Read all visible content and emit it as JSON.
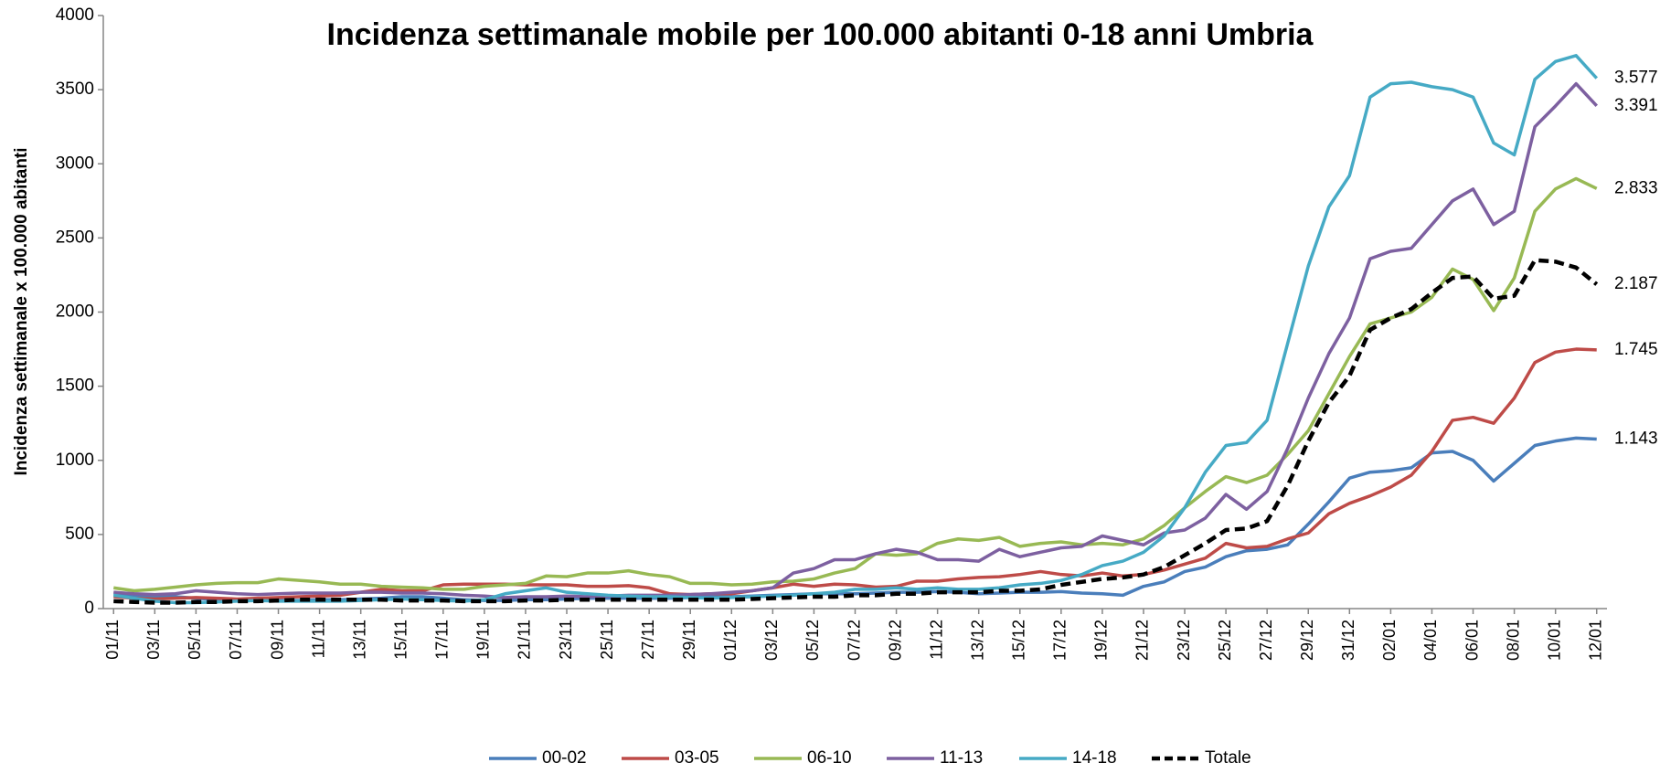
{
  "chart_data": {
    "type": "line",
    "title": "Incidenza settimanale mobile per 100.000 abitanti 0-18 anni  Umbria",
    "y_label": "Incidenza settimanale x 100.000 abitanti",
    "ylim": [
      0,
      4000
    ],
    "yticks": [
      0,
      500,
      1000,
      1500,
      2000,
      2500,
      3000,
      3500,
      4000
    ],
    "grid": false,
    "legend": "bottom",
    "categories": [
      "01/11",
      null,
      "03/11",
      null,
      "05/11",
      null,
      "07/11",
      null,
      "09/11",
      null,
      "11/11",
      null,
      "13/11",
      null,
      "15/11",
      null,
      "17/11",
      null,
      "19/11",
      null,
      "21/11",
      null,
      "23/11",
      null,
      "25/11",
      null,
      "27/11",
      null,
      "29/11",
      null,
      "01/12",
      null,
      "03/12",
      null,
      "05/12",
      null,
      "07/12",
      null,
      "09/12",
      null,
      "11/12",
      null,
      "13/12",
      null,
      "15/12",
      null,
      "17/12",
      null,
      "19/12",
      null,
      "21/12",
      null,
      "23/12",
      null,
      "25/12",
      null,
      "27/12",
      null,
      "29/12",
      null,
      "31/12",
      null,
      "02/01",
      null,
      "04/01",
      null,
      "06/01",
      null,
      "08/01",
      null,
      "10/01",
      null,
      "12/01"
    ],
    "series": [
      {
        "name": "00-02",
        "color": "#4a7ebb",
        "values": [
          100,
          90,
          80,
          80,
          70,
          60,
          60,
          60,
          55,
          55,
          60,
          60,
          65,
          70,
          80,
          80,
          70,
          60,
          55,
          55,
          60,
          60,
          65,
          70,
          70,
          70,
          70,
          70,
          75,
          80,
          80,
          85,
          90,
          95,
          100,
          100,
          100,
          105,
          110,
          110,
          115,
          110,
          100,
          105,
          110,
          110,
          115,
          105,
          100,
          90,
          150,
          180,
          250,
          280,
          350,
          390,
          400,
          430,
          570,
          720,
          880,
          920,
          930,
          950,
          1050,
          1060,
          1000,
          860,
          980,
          1100,
          1130,
          1150,
          1143
        ],
        "value_labels": {
          "72": "1.143"
        }
      },
      {
        "name": "03-05",
        "color": "#be4b48",
        "values": [
          80,
          70,
          65,
          70,
          75,
          70,
          65,
          70,
          75,
          80,
          85,
          90,
          110,
          130,
          120,
          120,
          160,
          165,
          165,
          165,
          160,
          160,
          160,
          150,
          150,
          155,
          140,
          100,
          95,
          100,
          100,
          120,
          140,
          165,
          150,
          165,
          160,
          145,
          150,
          185,
          185,
          200,
          210,
          215,
          230,
          250,
          230,
          220,
          240,
          220,
          230,
          260,
          300,
          340,
          440,
          410,
          420,
          470,
          510,
          640,
          710,
          760,
          820,
          900,
          1060,
          1270,
          1290,
          1250,
          1420,
          1660,
          1730,
          1750,
          1745
        ],
        "value_labels": {
          "72": "1.745"
        }
      },
      {
        "name": "06-10",
        "color": "#98b954",
        "values": [
          140,
          120,
          130,
          145,
          160,
          170,
          175,
          175,
          200,
          190,
          180,
          165,
          165,
          150,
          145,
          140,
          130,
          130,
          150,
          160,
          170,
          220,
          215,
          240,
          240,
          255,
          230,
          215,
          170,
          170,
          160,
          165,
          180,
          185,
          200,
          240,
          270,
          370,
          360,
          370,
          440,
          470,
          460,
          480,
          420,
          440,
          450,
          430,
          440,
          430,
          470,
          560,
          680,
          790,
          890,
          850,
          900,
          1040,
          1200,
          1450,
          1700,
          1920,
          1960,
          2000,
          2100,
          2290,
          2220,
          2010,
          2230,
          2680,
          2830,
          2900,
          2833
        ],
        "value_labels": {
          "72": "2.833"
        }
      },
      {
        "name": "11-13",
        "color": "#7d60a0",
        "values": [
          110,
          100,
          95,
          100,
          120,
          110,
          100,
          95,
          100,
          105,
          105,
          105,
          110,
          110,
          105,
          105,
          100,
          90,
          85,
          75,
          80,
          80,
          85,
          80,
          85,
          90,
          90,
          90,
          95,
          100,
          110,
          120,
          140,
          240,
          270,
          330,
          330,
          370,
          400,
          380,
          330,
          330,
          320,
          400,
          350,
          380,
          410,
          420,
          490,
          460,
          430,
          510,
          530,
          610,
          770,
          670,
          790,
          1080,
          1420,
          1720,
          1960,
          2360,
          2410,
          2430,
          2590,
          2750,
          2830,
          2590,
          2680,
          3250,
          3390,
          3540,
          3391
        ],
        "value_labels": {
          "72": "3.391"
        }
      },
      {
        "name": "14-18",
        "color": "#46aac5",
        "values": [
          90,
          70,
          50,
          40,
          40,
          45,
          50,
          55,
          50,
          50,
          50,
          50,
          55,
          60,
          65,
          60,
          55,
          50,
          60,
          100,
          120,
          140,
          110,
          100,
          90,
          85,
          80,
          80,
          75,
          70,
          75,
          80,
          85,
          90,
          100,
          110,
          130,
          130,
          140,
          130,
          140,
          130,
          130,
          140,
          160,
          170,
          190,
          230,
          290,
          320,
          380,
          490,
          680,
          920,
          1100,
          1120,
          1270,
          1790,
          2310,
          2710,
          2920,
          3450,
          3540,
          3550,
          3520,
          3500,
          3450,
          3140,
          3060,
          3570,
          3690,
          3730,
          3577
        ],
        "value_labels": {
          "72": "3.577"
        }
      },
      {
        "name": "Totale",
        "color": "#000000",
        "dashed": true,
        "values": [
          50,
          45,
          40,
          40,
          45,
          45,
          50,
          50,
          55,
          60,
          60,
          60,
          60,
          60,
          55,
          55,
          55,
          50,
          50,
          50,
          55,
          55,
          60,
          60,
          60,
          60,
          60,
          60,
          60,
          60,
          60,
          65,
          70,
          75,
          80,
          80,
          90,
          90,
          100,
          100,
          110,
          110,
          110,
          120,
          120,
          130,
          160,
          180,
          200,
          210,
          230,
          280,
          360,
          440,
          530,
          540,
          590,
          830,
          1130,
          1390,
          1570,
          1880,
          1960,
          2020,
          2130,
          2230,
          2240,
          2090,
          2110,
          2350,
          2340,
          2300,
          2187
        ],
        "value_labels": {
          "72": "2.187"
        }
      }
    ]
  }
}
